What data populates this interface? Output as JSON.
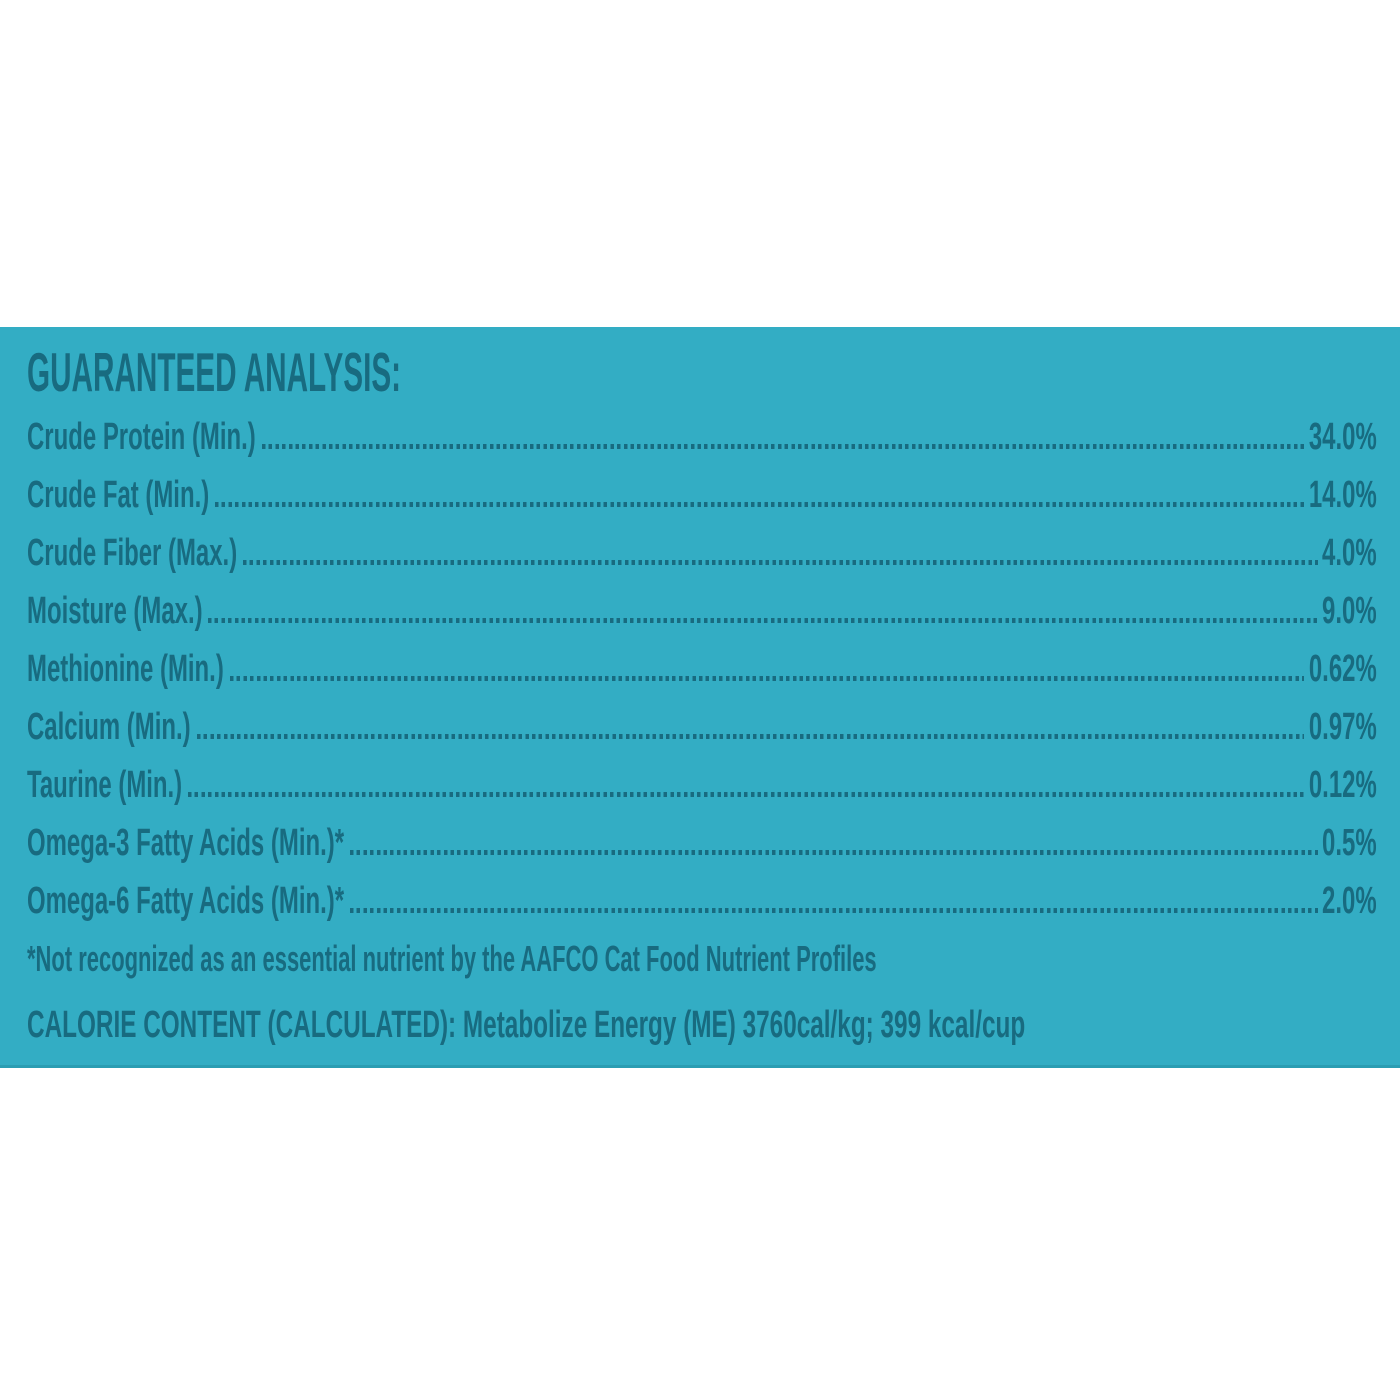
{
  "colors": {
    "panel_background": "#33ADC4",
    "text": "#186B80",
    "page_background": "#FFFFFF"
  },
  "panel": {
    "title": "GUARANTEED ANALYSIS:",
    "rows": [
      {
        "label": "Crude Protein (Min.)",
        "value": "34.0%"
      },
      {
        "label": "Crude Fat (Min.)",
        "value": "14.0%"
      },
      {
        "label": "Crude Fiber (Max.)",
        "value": "4.0%"
      },
      {
        "label": "Moisture (Max.)",
        "value": "9.0%"
      },
      {
        "label": "Methionine (Min.)",
        "value": "0.62%"
      },
      {
        "label": "Calcium (Min.)",
        "value": "0.97%"
      },
      {
        "label": "Taurine (Min.)",
        "value": "0.12%"
      },
      {
        "label": "Omega-3 Fatty Acids (Min.)*",
        "value": "0.5%"
      },
      {
        "label": "Omega-6 Fatty Acids (Min.)*",
        "value": "2.0%"
      }
    ],
    "footnote": "*Not recognized as an essential nutrient by the AAFCO Cat Food Nutrient Profiles",
    "calorie_content": "CALORIE CONTENT (CALCULATED): Metabolize Energy (ME) 3760cal/kg; 399 kcal/cup"
  }
}
